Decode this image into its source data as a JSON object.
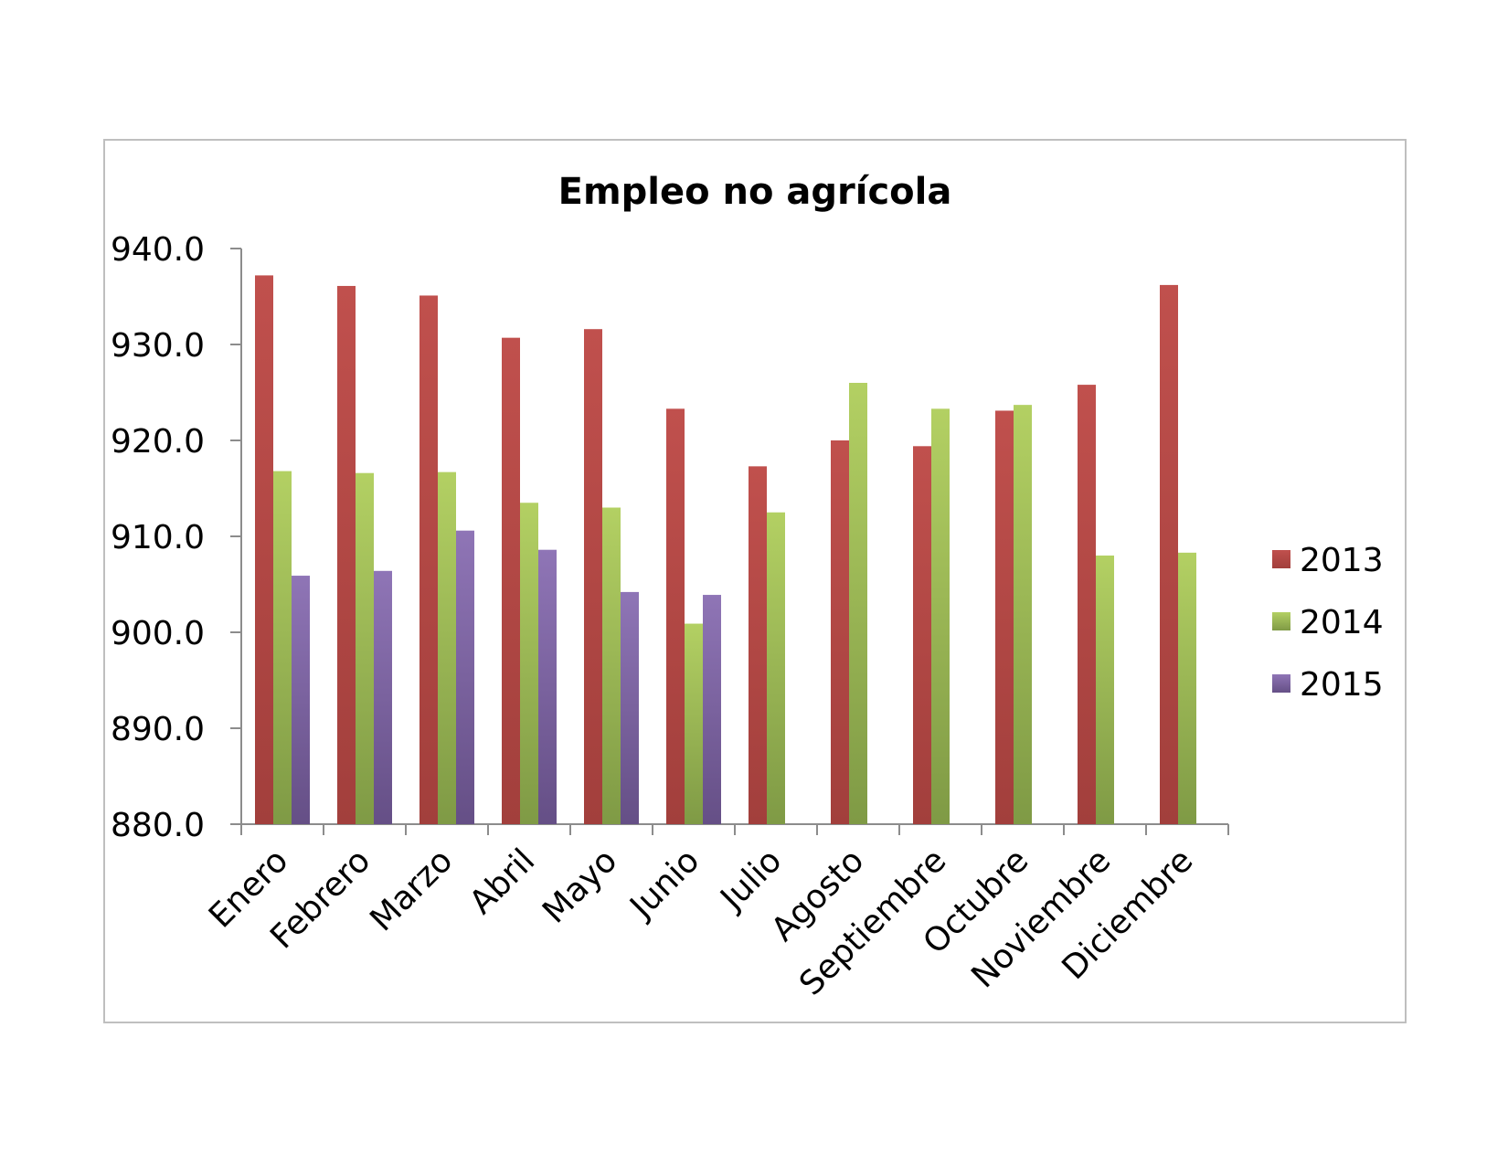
{
  "chart_data": {
    "type": "bar",
    "title": "Empleo no agrícola",
    "xlabel": "",
    "ylabel": "",
    "ylim": [
      880,
      940
    ],
    "yticks": [
      "880.0",
      "890.0",
      "900.0",
      "910.0",
      "920.0",
      "930.0",
      "940.0"
    ],
    "grid": false,
    "legend_position": "right",
    "categories": [
      "Enero",
      "Febrero",
      "Marzo",
      "Abril",
      "Mayo",
      "Junio",
      "Julio",
      "Agosto",
      "Septiembre",
      "Octubre",
      "Noviembre",
      "Diciembre"
    ],
    "series": [
      {
        "name": "2013",
        "color": "#c0504d",
        "values": [
          937.2,
          936.1,
          935.1,
          930.7,
          931.6,
          923.3,
          917.3,
          920.0,
          919.4,
          923.1,
          925.8,
          936.2
        ]
      },
      {
        "name": "2014",
        "color": "#9bbb59",
        "values": [
          916.8,
          916.6,
          916.7,
          913.5,
          913.0,
          900.9,
          912.5,
          926.0,
          923.3,
          923.7,
          908.0,
          908.3
        ]
      },
      {
        "name": "2015",
        "color": "#8064a2",
        "values": [
          905.9,
          906.4,
          910.6,
          908.6,
          904.2,
          903.9,
          null,
          null,
          null,
          null,
          null,
          null
        ]
      }
    ]
  }
}
